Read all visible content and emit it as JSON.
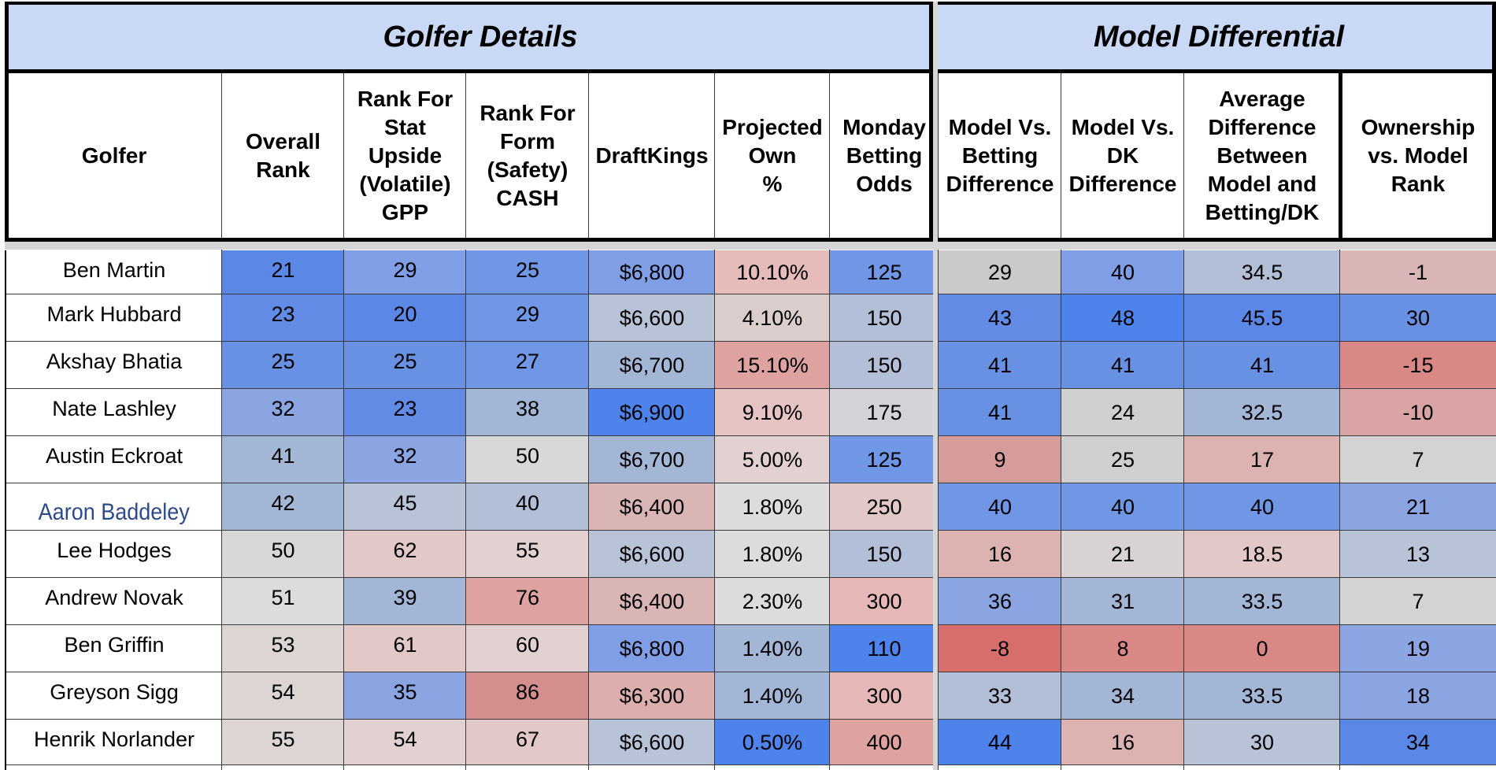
{
  "sections": {
    "left_title": "Golfer Details",
    "right_title": "Model Differential"
  },
  "columns": [
    {
      "key": "golfer",
      "label": "Golfer"
    },
    {
      "key": "overall_rank",
      "label": "Overall\nRank"
    },
    {
      "key": "rank_stat",
      "label": "Rank For\nStat\nUpside\n(Volatile)\nGPP"
    },
    {
      "key": "rank_form",
      "label": "Rank For\nForm\n(Safety)\nCASH"
    },
    {
      "key": "draftkings",
      "label": "DraftKings"
    },
    {
      "key": "proj_own",
      "label": "Projected\nOwn\n%"
    },
    {
      "key": "monday_odds",
      "label": "Monday\nBetting\nOdds"
    },
    {
      "key": "model_vs_betting",
      "label": "Model Vs.\nBetting\nDifference"
    },
    {
      "key": "model_vs_dk",
      "label": "Model Vs.\nDK\nDifference"
    },
    {
      "key": "avg_diff",
      "label": "Average\nDifference\nBetween\nModel and\nBetting/DK"
    },
    {
      "key": "own_vs_model",
      "label": "Ownership\nvs. Model\nRank"
    }
  ],
  "rows": [
    {
      "golfer": "Ben Martin",
      "overall_rank": "21",
      "rank_stat": "29",
      "rank_form": "25",
      "draftkings": "$6,800",
      "proj_own": "10.10%",
      "monday_odds": "125",
      "model_vs_betting": "29",
      "model_vs_dk": "40",
      "avg_diff": "34.5",
      "own_vs_model": "-1",
      "colors": [
        "#ffffff",
        "#5b88e6",
        "#7f9ee5",
        "#7097e6",
        "#7f9ee5",
        "#e6bcbb",
        "#7097e6",
        "#cacaca",
        "#7f9ee5",
        "#b3bfd6",
        "#d9b6b5"
      ]
    },
    {
      "golfer": "Mark Hubbard",
      "overall_rank": "23",
      "rank_stat": "20",
      "rank_form": "29",
      "draftkings": "$6,600",
      "proj_own": "4.10%",
      "monday_odds": "150",
      "model_vs_betting": "43",
      "model_vs_dk": "48",
      "avg_diff": "45.5",
      "own_vs_model": "30",
      "colors": [
        "#ffffff",
        "#628be6",
        "#5b88e6",
        "#7097e6",
        "#b9c3d8",
        "#dccdcd",
        "#b3bfd6",
        "#628be6",
        "#4f83ec",
        "#5b88e6",
        "#6890e3"
      ]
    },
    {
      "golfer": "Akshay Bhatia",
      "overall_rank": "25",
      "rank_stat": "25",
      "rank_form": "27",
      "draftkings": "$6,700",
      "proj_own": "15.10%",
      "monday_odds": "150",
      "model_vs_betting": "41",
      "model_vs_dk": "41",
      "avg_diff": "41",
      "own_vs_model": "-15",
      "colors": [
        "#ffffff",
        "#6890e3",
        "#6890e3",
        "#7097e6",
        "#a4b6d6",
        "#dea2a1",
        "#b3bfd6",
        "#6890e3",
        "#6890e3",
        "#6890e3",
        "#d98886"
      ]
    },
    {
      "golfer": "Nate Lashley",
      "overall_rank": "32",
      "rank_stat": "23",
      "rank_form": "38",
      "draftkings": "$6,900",
      "proj_own": "9.10%",
      "monday_odds": "175",
      "model_vs_betting": "41",
      "model_vs_dk": "24",
      "avg_diff": "32.5",
      "own_vs_model": "-10",
      "colors": [
        "#ffffff",
        "#8aa5e2",
        "#628be6",
        "#a4b6d6",
        "#4f83ec",
        "#e6c4c3",
        "#d3d3d8",
        "#6890e3",
        "#cfcfcf",
        "#a4b6d6",
        "#d9a4a3"
      ]
    },
    {
      "golfer": "Austin Eckroat",
      "overall_rank": "41",
      "rank_stat": "32",
      "rank_form": "50",
      "draftkings": "$6,700",
      "proj_own": "5.00%",
      "monday_odds": "125",
      "model_vs_betting": "9",
      "model_vs_dk": "25",
      "avg_diff": "17",
      "own_vs_model": "7",
      "colors": [
        "#ffffff",
        "#a4b6d6",
        "#8aa5e2",
        "#d8d8d8",
        "#a4b6d6",
        "#e2d1d0",
        "#7097e6",
        "#d69c9b",
        "#cfcfcf",
        "#ddb3b2",
        "#d3d3d3"
      ]
    },
    {
      "golfer": "Aaron Baddeley",
      "overall_rank": "42",
      "rank_stat": "45",
      "rank_form": "40",
      "draftkings": "$6,400",
      "proj_own": "1.80%",
      "monday_odds": "250",
      "model_vs_betting": "40",
      "model_vs_dk": "40",
      "avg_diff": "40",
      "own_vs_model": "21",
      "colors": [
        "#ffffff",
        "#a4b6d6",
        "#b9c3d8",
        "#b3bfd6",
        "#d9b6b5",
        "#dcdcdc",
        "#e2c8c7",
        "#7097e6",
        "#7097e6",
        "#7097e6",
        "#8aa5e2"
      ]
    },
    {
      "golfer": "Lee Hodges",
      "overall_rank": "50",
      "rank_stat": "62",
      "rank_form": "55",
      "draftkings": "$6,600",
      "proj_own": "1.80%",
      "monday_odds": "150",
      "model_vs_betting": "16",
      "model_vs_dk": "21",
      "avg_diff": "18.5",
      "own_vs_model": "13",
      "colors": [
        "#ffffff",
        "#d8d8d8",
        "#e2c8c7",
        "#e2d1d0",
        "#b9c3d8",
        "#dcdcdc",
        "#b3bfd6",
        "#ddb3b2",
        "#d9d2d2",
        "#e2c8c7",
        "#b9c3d8"
      ]
    },
    {
      "golfer": "Andrew Novak",
      "overall_rank": "51",
      "rank_stat": "39",
      "rank_form": "76",
      "draftkings": "$6,400",
      "proj_own": "2.30%",
      "monday_odds": "300",
      "model_vs_betting": "36",
      "model_vs_dk": "31",
      "avg_diff": "33.5",
      "own_vs_model": "7",
      "colors": [
        "#ffffff",
        "#dcdcdc",
        "#a4b6d6",
        "#dea2a1",
        "#d9b6b5",
        "#dcdcdc",
        "#e6b7b6",
        "#8aa5e2",
        "#a4b6d6",
        "#a4b6d6",
        "#d3d3d3"
      ]
    },
    {
      "golfer": "Ben Griffin",
      "overall_rank": "53",
      "rank_stat": "61",
      "rank_form": "60",
      "draftkings": "$6,800",
      "proj_own": "1.40%",
      "monday_odds": "110",
      "model_vs_betting": "-8",
      "model_vs_dk": "8",
      "avg_diff": "0",
      "own_vs_model": "19",
      "colors": [
        "#ffffff",
        "#ddd4d4",
        "#e2c8c7",
        "#e2d1d0",
        "#7f9ee5",
        "#a4b6d6",
        "#4f83ec",
        "#d86e6c",
        "#d98886",
        "#d98886",
        "#8aa5e2"
      ]
    },
    {
      "golfer": "Greyson Sigg",
      "overall_rank": "54",
      "rank_stat": "35",
      "rank_form": "86",
      "draftkings": "$6,300",
      "proj_own": "1.40%",
      "monday_odds": "300",
      "model_vs_betting": "33",
      "model_vs_dk": "34",
      "avg_diff": "33.5",
      "own_vs_model": "18",
      "colors": [
        "#ffffff",
        "#ddd4d4",
        "#8aa5e2",
        "#d38e8d",
        "#dcafae",
        "#a4b6d6",
        "#e6b7b6",
        "#b3bfd6",
        "#a4b6d6",
        "#a4b6d6",
        "#8aa5e2"
      ]
    },
    {
      "golfer": "Henrik Norlander",
      "overall_rank": "55",
      "rank_stat": "54",
      "rank_form": "67",
      "draftkings": "$6,600",
      "proj_own": "0.50%",
      "monday_odds": "400",
      "model_vs_betting": "44",
      "model_vs_dk": "16",
      "avg_diff": "30",
      "own_vs_model": "34",
      "colors": [
        "#ffffff",
        "#ddd4d4",
        "#e2d1d0",
        "#e2c8c7",
        "#b9c3d8",
        "#4f83ec",
        "#dea2a1",
        "#4f83ec",
        "#ddb3b2",
        "#b9c3d8",
        "#5b88e6"
      ]
    }
  ]
}
